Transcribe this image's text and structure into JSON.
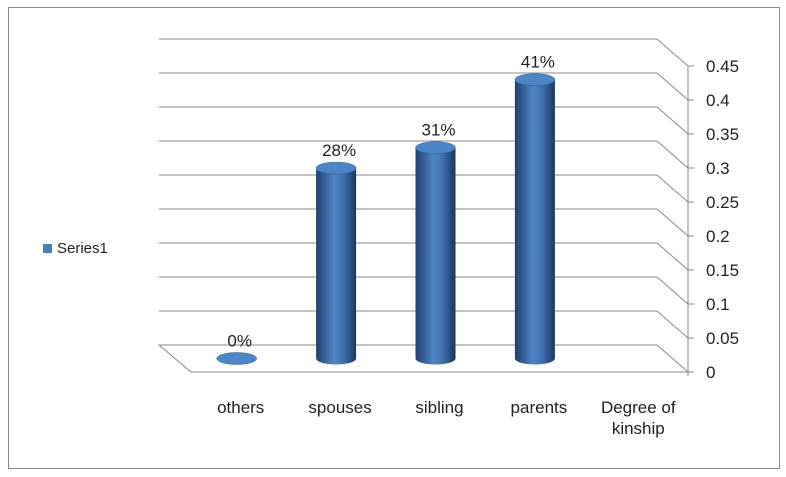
{
  "chart_data": {
    "type": "bar",
    "style": "3d-cylinder",
    "categories": [
      "others",
      "spouses",
      "sibling",
      "parents",
      "Degree of kinship"
    ],
    "series": [
      {
        "name": "Series1",
        "values": [
          0,
          0.28,
          0.31,
          0.41,
          null
        ],
        "labels": [
          "0%",
          "28%",
          "31%",
          "41%",
          ""
        ]
      }
    ],
    "ylim": [
      0,
      0.45
    ],
    "yticks": [
      "0",
      "0.05",
      "0.1",
      "0.15",
      "0.2",
      "0.25",
      "0.3",
      "0.35",
      "0.4",
      "0.45"
    ],
    "y_axis_side": "right",
    "grid": true,
    "legend_position": "left",
    "colors": {
      "bar": "#4a7ebb",
      "bar_dark": "#1f3f6e",
      "bar_top": "#4d86c7",
      "grid": "#888888",
      "text": "#222222",
      "border": "#8a8a8a"
    }
  },
  "legend": {
    "label": "Series1"
  }
}
